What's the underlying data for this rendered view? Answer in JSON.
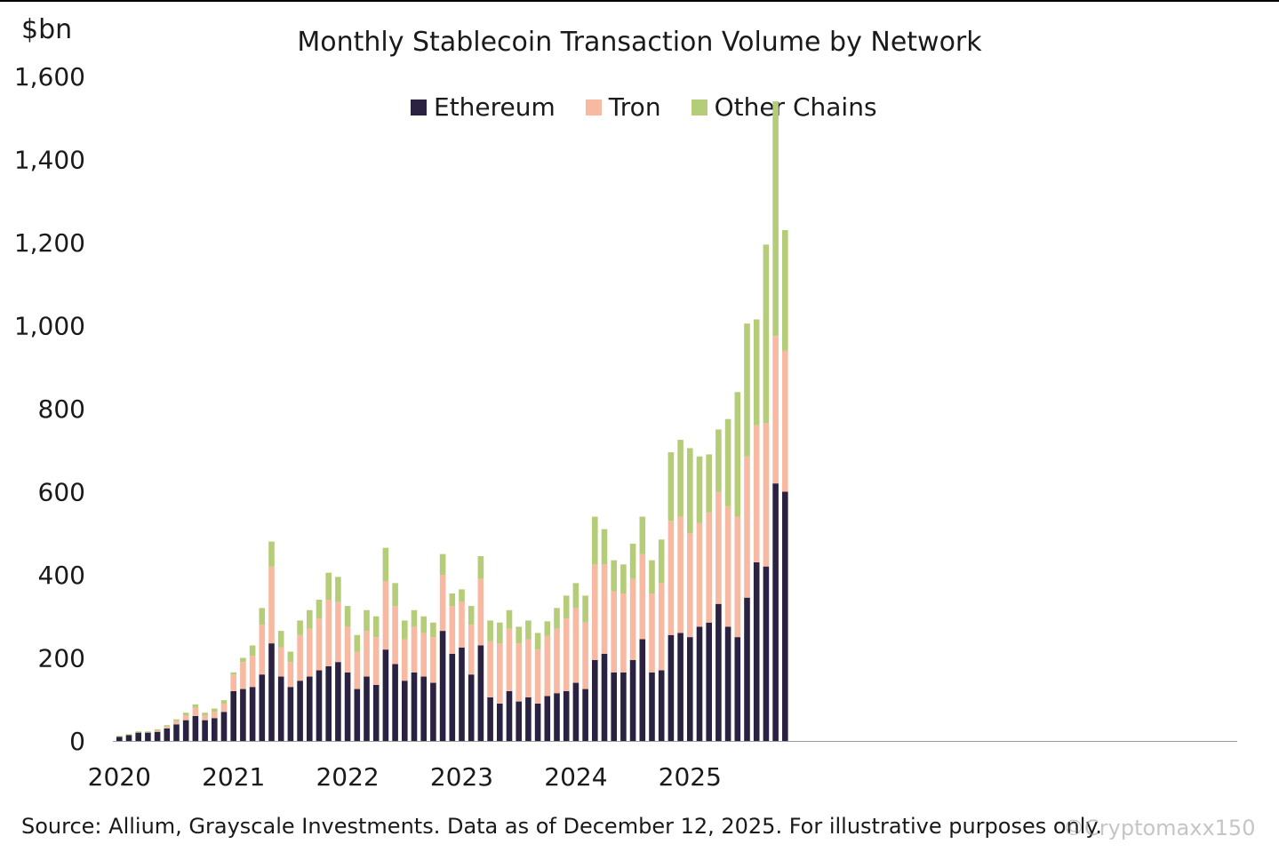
{
  "chart_data": {
    "type": "bar",
    "stacked": true,
    "title": "Monthly Stablecoin Transaction Volume by Network",
    "ylabel": "$bn",
    "xlabel": "",
    "ylim": [
      0,
      1600
    ],
    "y_ticks": [
      "0",
      "200",
      "400",
      "600",
      "800",
      "1,000",
      "1,200",
      "1,400",
      "1,600"
    ],
    "y_tick_values": [
      0,
      200,
      400,
      600,
      800,
      1000,
      1200,
      1400,
      1600
    ],
    "x_tick_labels": [
      "2020",
      "2021",
      "2022",
      "2023",
      "2024",
      "2025"
    ],
    "x_tick_indices": [
      0,
      12,
      24,
      36,
      48,
      60
    ],
    "legend_position": "top-center",
    "series": [
      {
        "name": "Ethereum",
        "color": "#2b2140",
        "values": [
          10,
          14,
          20,
          20,
          22,
          30,
          40,
          50,
          60,
          50,
          55,
          70,
          120,
          125,
          130,
          160,
          235,
          155,
          130,
          145,
          155,
          170,
          180,
          190,
          165,
          125,
          155,
          135,
          220,
          185,
          145,
          165,
          155,
          140,
          265,
          210,
          225,
          160,
          230,
          105,
          90,
          120,
          95,
          105,
          90,
          108,
          115,
          120,
          140,
          125,
          195,
          210,
          165,
          165,
          195,
          245,
          165,
          170,
          255,
          260,
          250,
          275,
          285,
          330,
          275,
          250,
          345,
          430,
          420,
          620,
          600
        ]
      },
      {
        "name": "Tron",
        "color": "#f7b9a1",
        "values": [
          0,
          0,
          0,
          0,
          3,
          5,
          8,
          12,
          20,
          12,
          15,
          20,
          40,
          65,
          75,
          120,
          185,
          70,
          60,
          110,
          115,
          125,
          160,
          145,
          110,
          90,
          110,
          115,
          165,
          140,
          100,
          110,
          105,
          110,
          135,
          115,
          110,
          120,
          160,
          135,
          145,
          150,
          140,
          140,
          130,
          145,
          155,
          175,
          180,
          160,
          230,
          215,
          195,
          190,
          195,
          205,
          190,
          210,
          275,
          280,
          250,
          250,
          265,
          270,
          290,
          290,
          340,
          330,
          345,
          355,
          340
        ]
      },
      {
        "name": "Other Chains",
        "color": "#b5cc78",
        "values": [
          2,
          2,
          3,
          3,
          3,
          3,
          4,
          6,
          8,
          6,
          8,
          8,
          5,
          10,
          25,
          40,
          60,
          40,
          25,
          35,
          45,
          45,
          65,
          60,
          50,
          40,
          50,
          50,
          80,
          55,
          45,
          40,
          40,
          35,
          50,
          30,
          30,
          45,
          55,
          50,
          50,
          45,
          40,
          45,
          40,
          35,
          50,
          55,
          60,
          65,
          115,
          85,
          75,
          70,
          85,
          90,
          80,
          105,
          165,
          185,
          205,
          160,
          140,
          150,
          210,
          300,
          320,
          255,
          430,
          565,
          290
        ]
      }
    ]
  },
  "source_text": "Source: Allium, Grayscale Investments. Data as of December 12, 2025. For illustrative purposes only.",
  "watermark": "©Cryptomaxx150"
}
